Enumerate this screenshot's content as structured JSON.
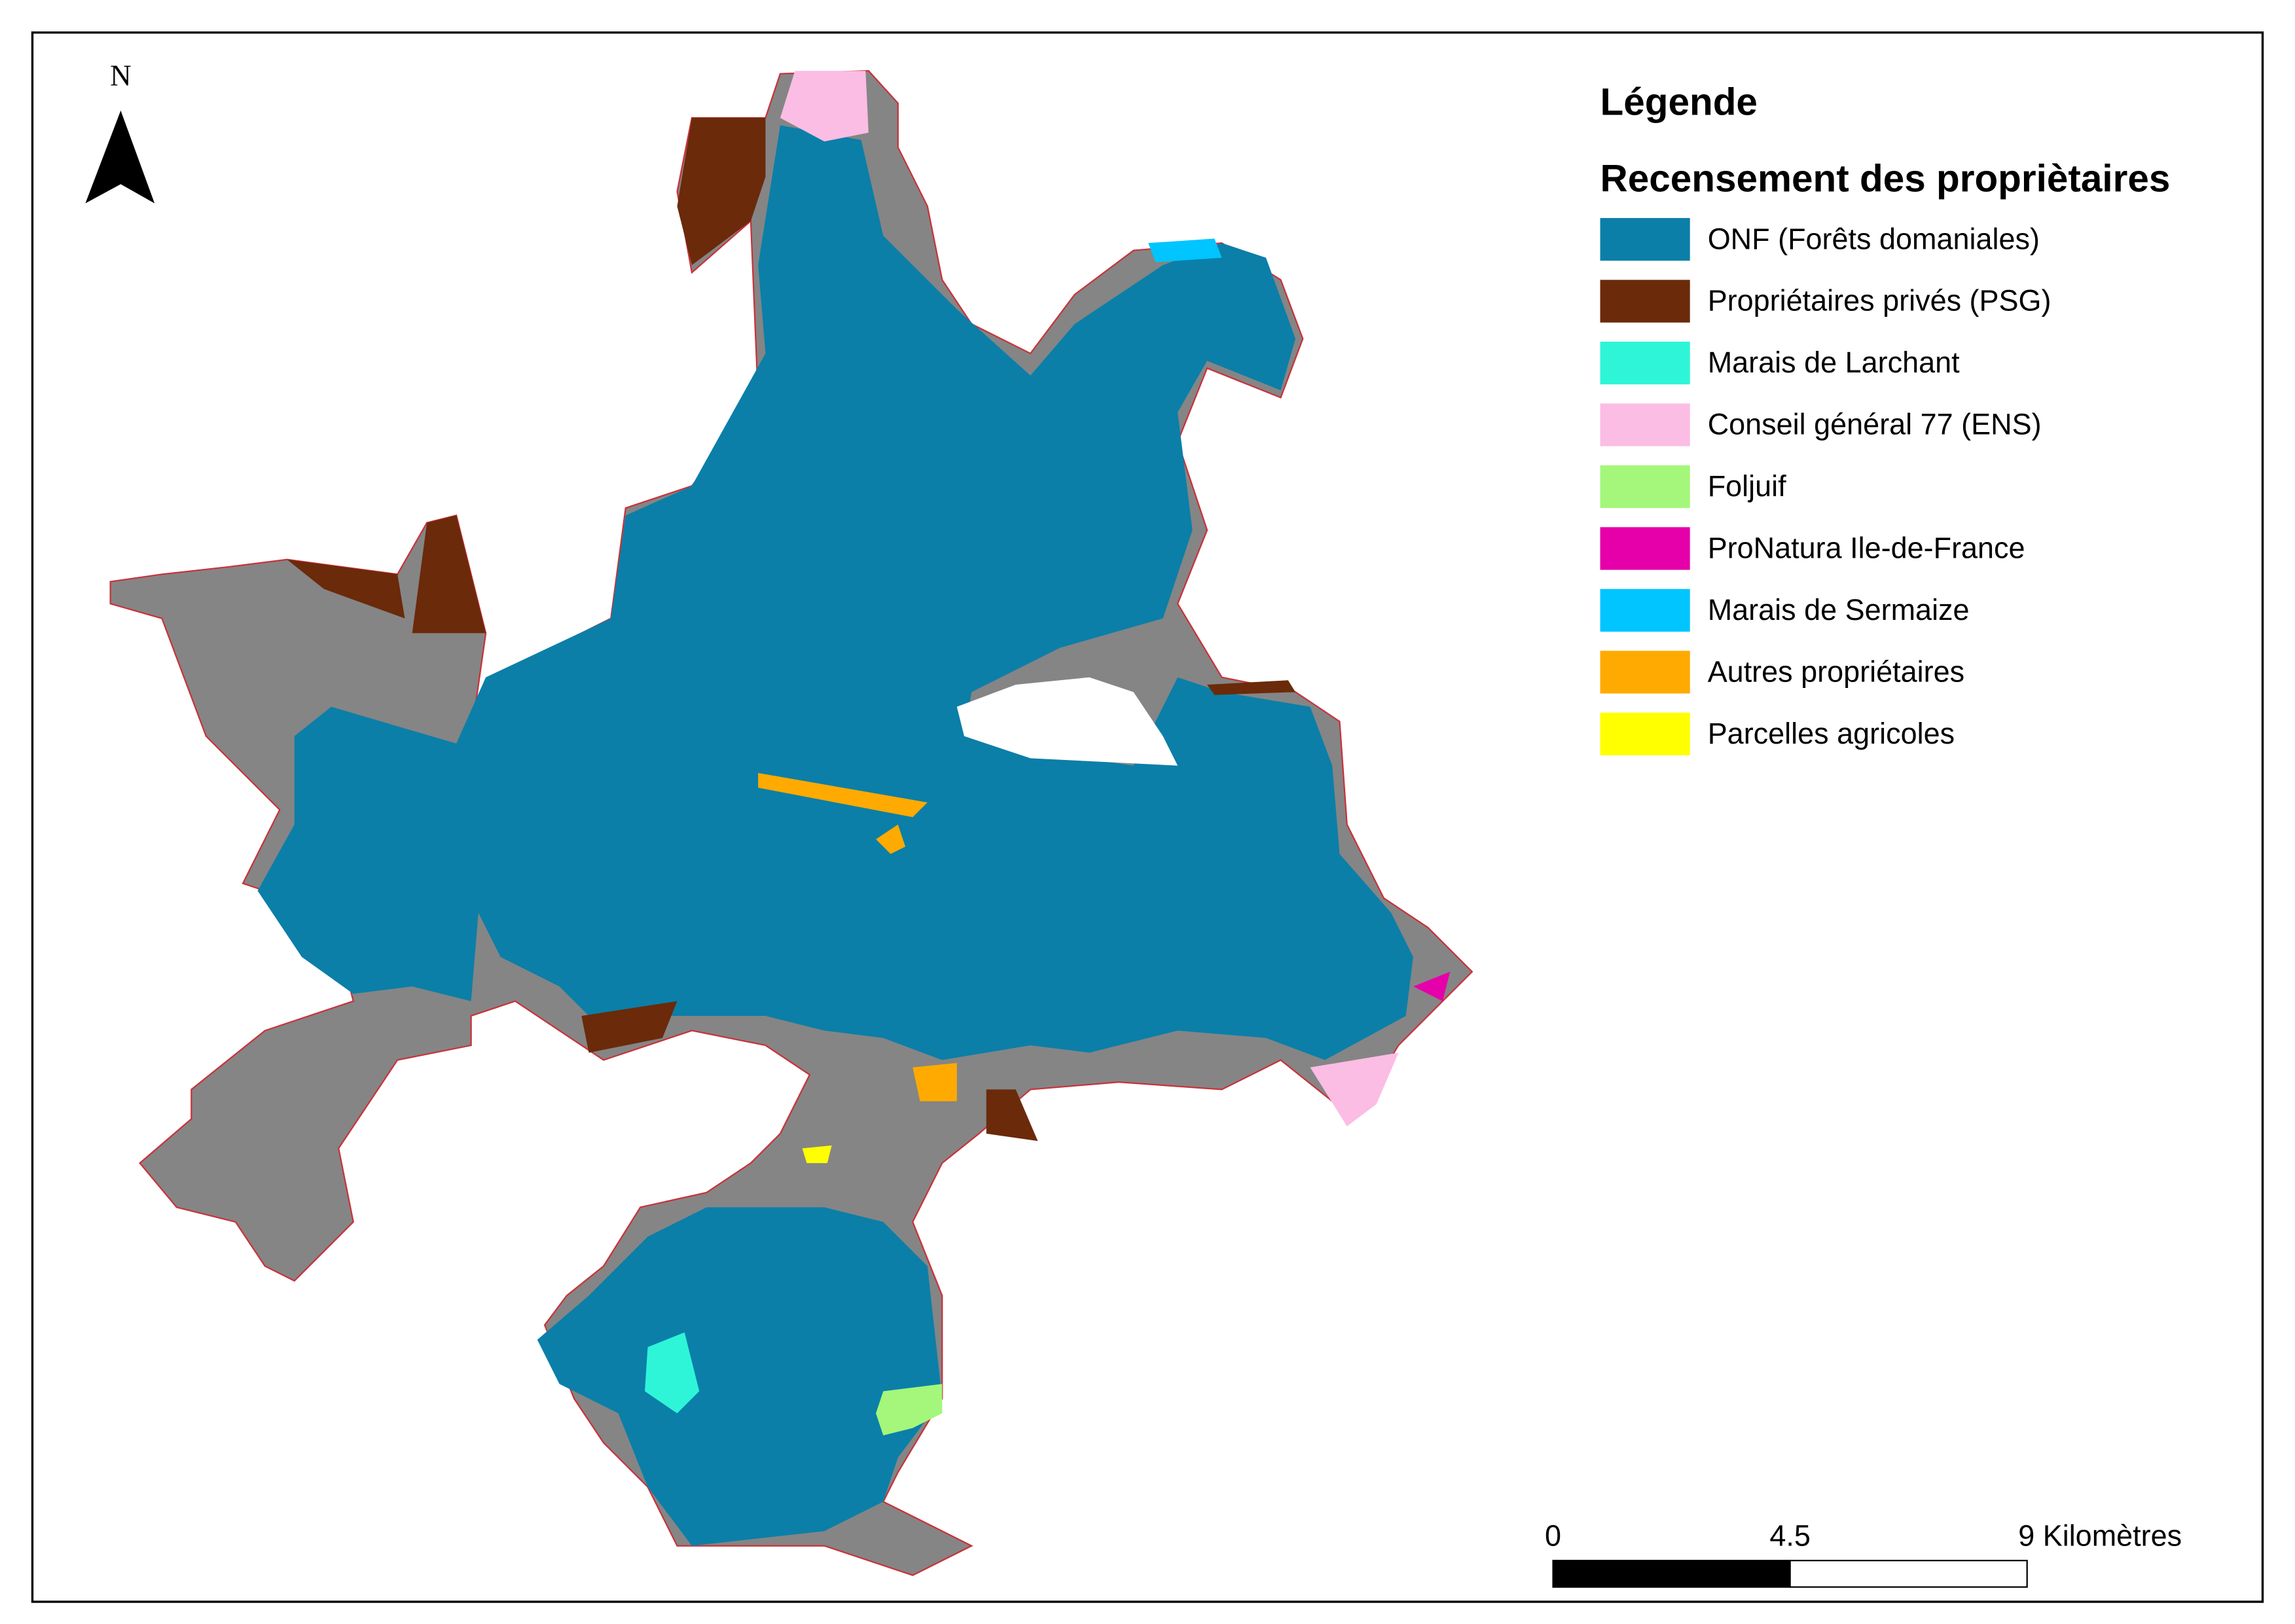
{
  "north": "N",
  "legend": {
    "title": "Légende",
    "subtitle": "Recensement des propriètaires",
    "items": [
      {
        "label": "ONF (Forêts domaniales)",
        "color": "#0b7fa8"
      },
      {
        "label": "Propriétaires privés (PSG)",
        "color": "#6b2a0a"
      },
      {
        "label": "Marais de Larchant",
        "color": "#2ef5d8"
      },
      {
        "label": "Conseil général 77 (ENS)",
        "color": "#fbbde3"
      },
      {
        "label": "Foljuif",
        "color": "#a4f77a"
      },
      {
        "label": "ProNatura Ile-de-France",
        "color": "#e600a9"
      },
      {
        "label": "Marais de Sermaize",
        "color": "#00c5ff"
      },
      {
        "label": "Autres propriétaires",
        "color": "#ffaa00"
      },
      {
        "label": "Parcelles agricoles",
        "color": "#ffff00"
      }
    ]
  },
  "scale_bar": {
    "labels": [
      "0",
      "4.5",
      "9 Kilomètres"
    ]
  }
}
